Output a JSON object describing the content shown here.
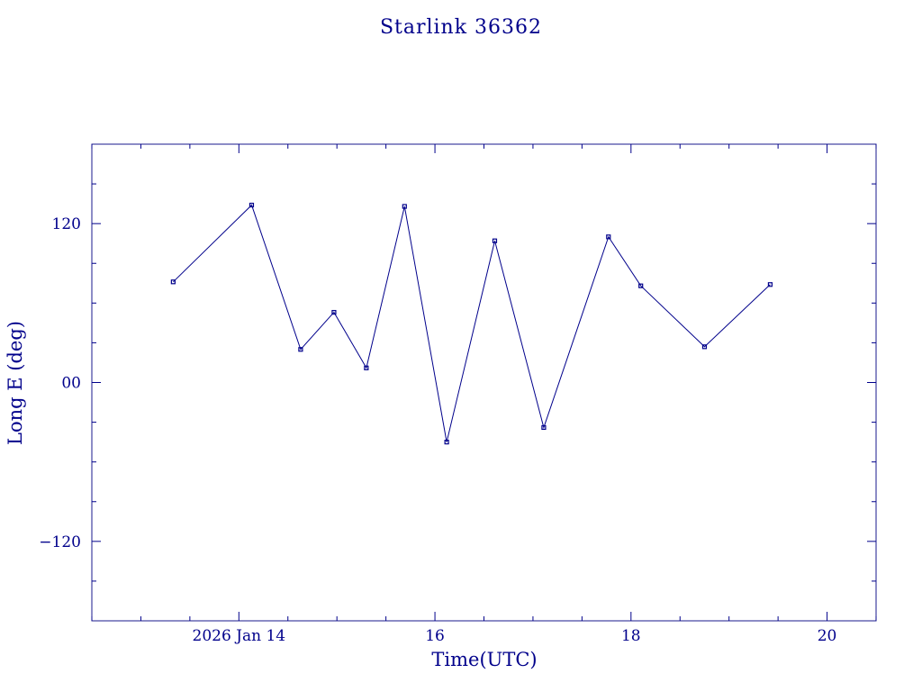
{
  "colors": {
    "ink": "#00008b",
    "frame": "#1a1a8c",
    "series": "#00008b",
    "background": "#ffffff"
  },
  "chart_data": {
    "type": "line",
    "title": "Starlink 36362",
    "xlabel": "Time(UTC)",
    "ylabel": "Long E (deg)",
    "x_tick_labels": [
      "2026 Jan 14",
      "16",
      "18",
      "20"
    ],
    "x_tick_days": [
      14,
      16,
      18,
      20
    ],
    "y_tick_labels": [
      "120",
      "00",
      "−120"
    ],
    "y_tick_values": [
      120,
      0,
      -120
    ],
    "xlim": [
      12.5,
      20.5
    ],
    "ylim": [
      -180,
      180
    ],
    "x_minor_step_days": 0.5,
    "y_minor_step": 30,
    "grid": false,
    "marker": "square",
    "series": [
      {
        "x": [
          13.33,
          14.13,
          14.63,
          14.97,
          15.3,
          15.69,
          16.12,
          16.61,
          17.11,
          17.77,
          18.1,
          18.75,
          19.42
        ],
        "y": [
          76,
          134,
          25,
          53,
          11,
          133,
          -45,
          107,
          -34,
          110,
          73,
          27,
          74
        ]
      }
    ]
  }
}
